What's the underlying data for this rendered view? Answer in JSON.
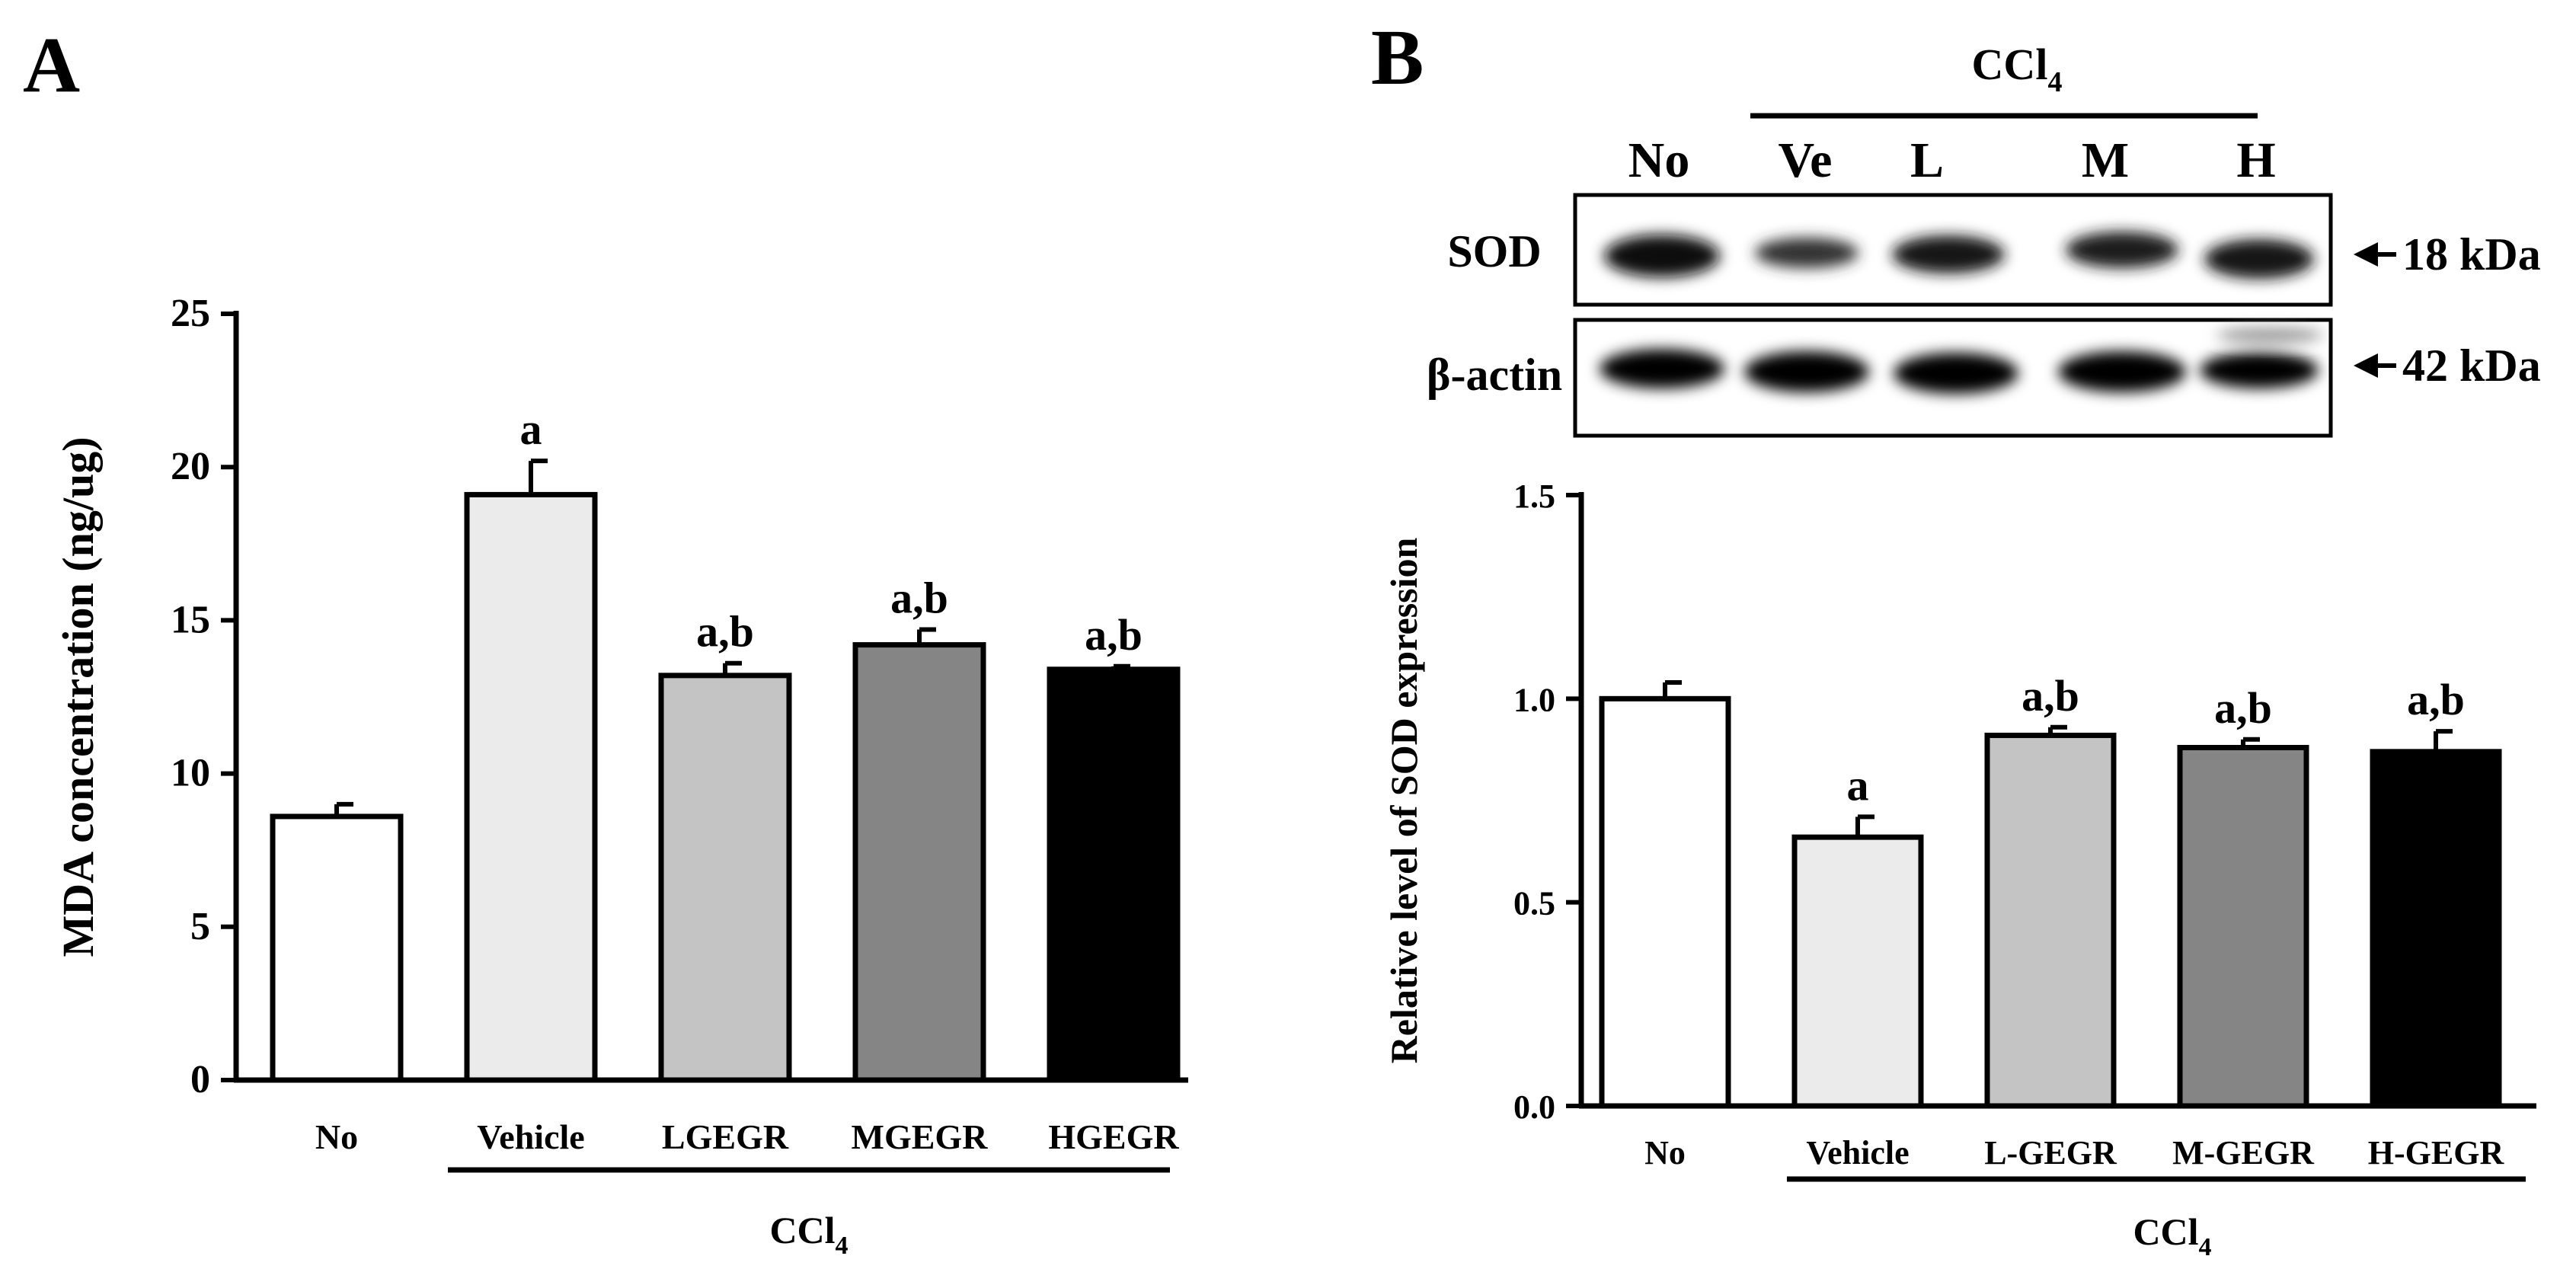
{
  "panels": {
    "A": {
      "letter": "A",
      "xlabels": [
        "No",
        "Vehicle",
        "LGEGR",
        "MGEGR",
        "HGEGR"
      ],
      "group_label": "CCl",
      "group_sub": "4"
    },
    "B": {
      "letter": "B",
      "blot": {
        "group_label": "CCl",
        "group_sub": "4",
        "lanes": [
          "No",
          "Ve",
          "L",
          "M",
          "H"
        ],
        "rows": [
          {
            "name": "SOD",
            "size": "18 kDa"
          },
          {
            "name": "β-actin",
            "size": "42 kDa"
          }
        ]
      },
      "xlabels": [
        "No",
        "Vehicle",
        "L-GEGR",
        "M-GEGR",
        "H-GEGR"
      ],
      "group_label": "CCl",
      "group_sub": "4"
    }
  },
  "chart_data": [
    {
      "type": "bar",
      "title": "",
      "xlabel": "",
      "ylabel": "MDA concentration (ng/ug)",
      "categories": [
        "No",
        "Vehicle",
        "LGEGR",
        "MGEGR",
        "HGEGR"
      ],
      "values": [
        8.6,
        19.1,
        13.2,
        14.2,
        13.4
      ],
      "errors": [
        0.4,
        1.1,
        0.4,
        0.5,
        0.1
      ],
      "annotations": [
        "",
        "a",
        "a,b",
        "a,b",
        "a,b"
      ],
      "colors": [
        "#ffffff",
        "#ebebeb",
        "#c4c4c4",
        "#858585",
        "#000000"
      ],
      "ylim": [
        0,
        25
      ],
      "yticks": [
        "0",
        "5",
        "10",
        "15",
        "20",
        "25"
      ]
    },
    {
      "type": "bar",
      "title": "",
      "xlabel": "",
      "ylabel": "Relative level of SOD expression",
      "categories": [
        "No",
        "Vehicle",
        "L-GEGR",
        "M-GEGR",
        "H-GEGR"
      ],
      "values": [
        1.0,
        0.66,
        0.91,
        0.88,
        0.87
      ],
      "errors": [
        0.04,
        0.05,
        0.02,
        0.02,
        0.05
      ],
      "annotations": [
        "",
        "a",
        "a,b",
        "a,b",
        "a,b"
      ],
      "colors": [
        "#ffffff",
        "#ebebeb",
        "#c4c4c4",
        "#858585",
        "#000000"
      ],
      "ylim": [
        0,
        1.5
      ],
      "yticks": [
        "0.0",
        "0.5",
        "1.0",
        "1.5"
      ]
    }
  ]
}
